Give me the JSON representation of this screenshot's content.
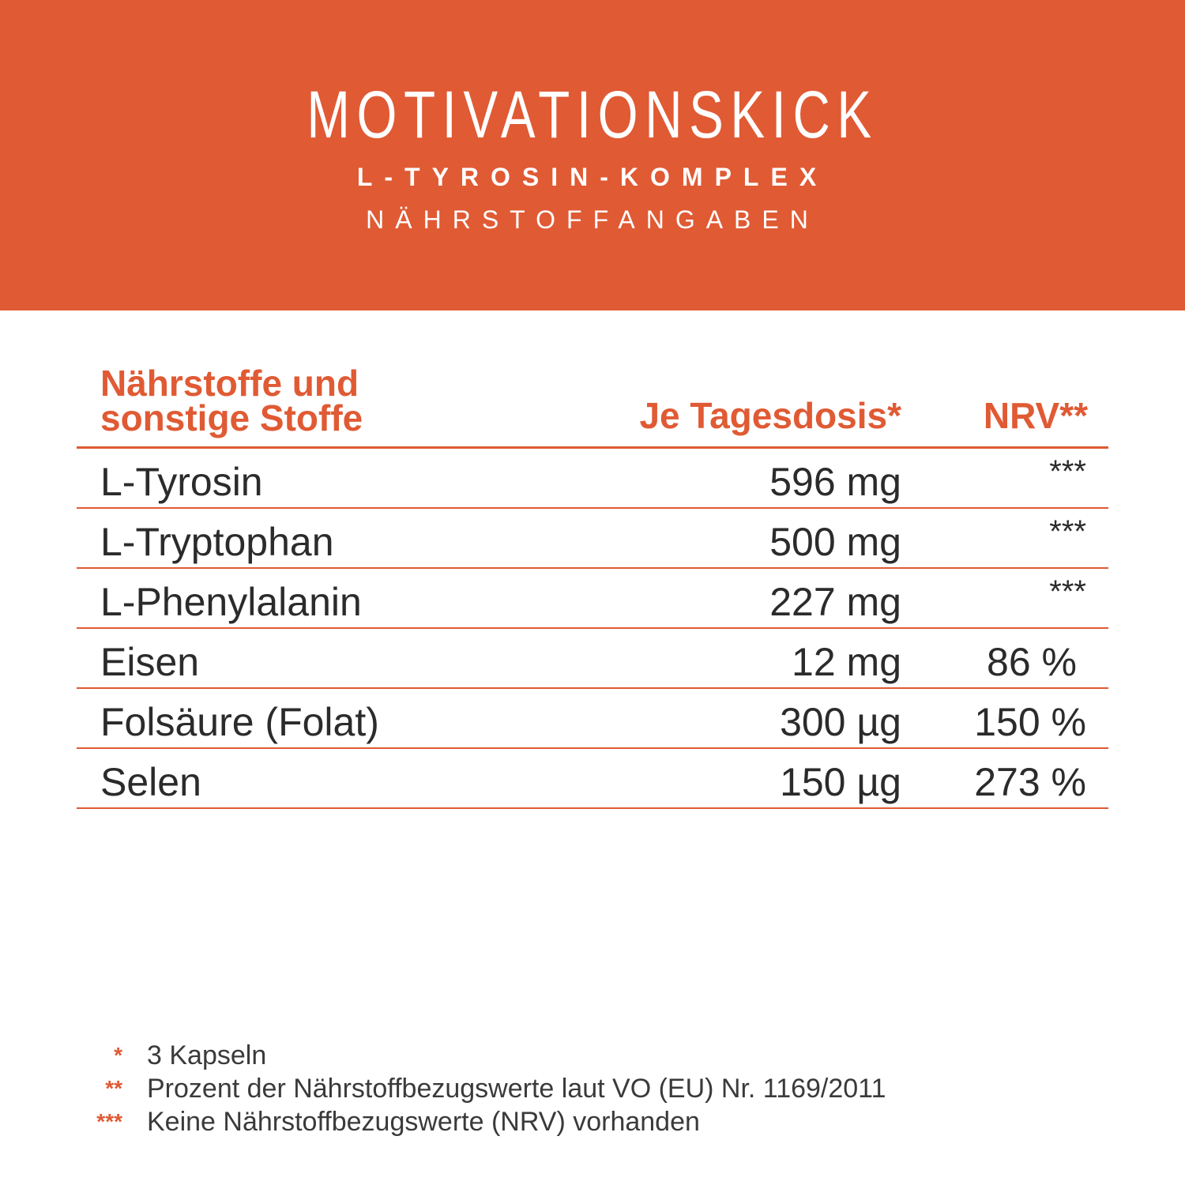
{
  "header": {
    "title": "MOTIVATIONSKICK",
    "subtitle": "L-TYROSIN-KOMPLEX",
    "section": "NÄHRSTOFFANGABEN",
    "background_color": "#e05a34"
  },
  "table": {
    "columns": {
      "name_line1": "Nährstoffe und",
      "name_line2": "sonstige Stoffe",
      "dose": "Je Tagesdosis*",
      "nrv": "NRV**"
    },
    "rows": [
      {
        "name": "L-Tyrosin",
        "dose": "596 mg",
        "nrv": "***"
      },
      {
        "name": "L-Tryptophan",
        "dose": "500 mg",
        "nrv": "***"
      },
      {
        "name": "L-Phenylalanin",
        "dose": "227 mg",
        "nrv": "***"
      },
      {
        "name": "Eisen",
        "dose": "12 mg",
        "nrv": "86 %"
      },
      {
        "name": "Folsäure (Folat)",
        "dose": "300 µg",
        "nrv": "150 %"
      },
      {
        "name": "Selen",
        "dose": "150 µg",
        "nrv": "273 %"
      }
    ],
    "accent_color": "#e05a34"
  },
  "footnotes": [
    {
      "mark": "*",
      "text": "3 Kapseln"
    },
    {
      "mark": "**",
      "text": "Prozent der Nährstoffbezugswerte laut VO (EU) Nr. 1169/2011"
    },
    {
      "mark": "***",
      "text": "Keine Nährstoffbezugswerte (NRV) vorhanden"
    }
  ]
}
